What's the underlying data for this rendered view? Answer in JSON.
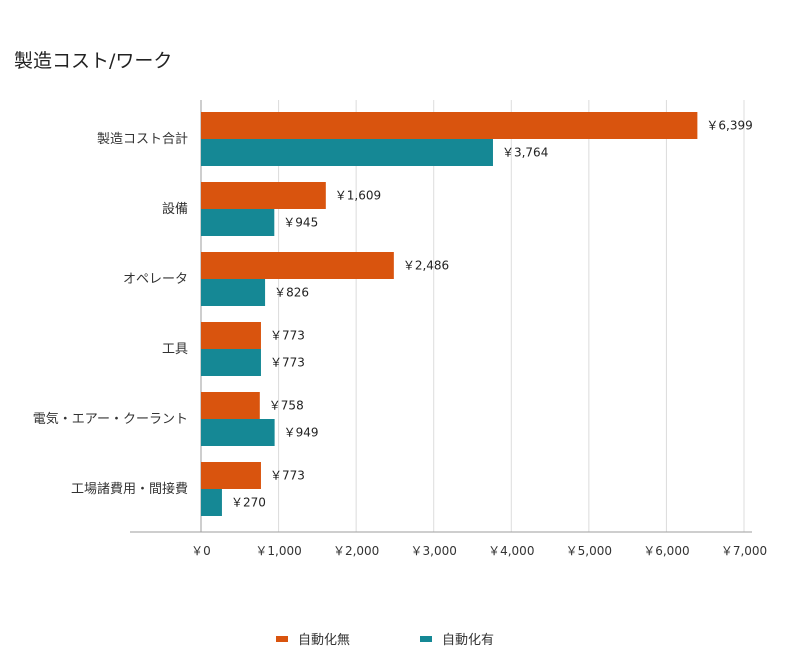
{
  "title": "製造コスト/ワーク",
  "colors": {
    "series1": "#d9540e",
    "series2": "#158895",
    "grid": "#dcdcdc",
    "axis": "#9e9e9e"
  },
  "chart_data": {
    "type": "bar",
    "orientation": "horizontal",
    "title": "製造コスト/ワーク",
    "categories": [
      "製造コスト合計",
      "設備",
      "オペレータ",
      "工具",
      "電気・エアー・クーラント",
      "工場諸費用・間接費"
    ],
    "series": [
      {
        "name": "自動化無",
        "values": [
          6399,
          1609,
          2486,
          773,
          758,
          773
        ],
        "labels": [
          "￥6,399",
          "￥1,609",
          "￥2,486",
          "￥773",
          "￥758",
          "￥773"
        ]
      },
      {
        "name": "自動化有",
        "values": [
          3764,
          945,
          826,
          773,
          949,
          270
        ],
        "labels": [
          "￥3,764",
          "￥945",
          "￥826",
          "￥773",
          "￥949",
          "￥270"
        ]
      }
    ],
    "xlim": [
      0,
      7000
    ],
    "xticks": [
      0,
      1000,
      2000,
      3000,
      4000,
      5000,
      6000,
      7000
    ],
    "xtick_labels": [
      "￥0",
      "￥1,000",
      "￥2,000",
      "￥3,000",
      "￥4,000",
      "￥5,000",
      "￥6,000",
      "￥7,000"
    ],
    "grid": true,
    "legend_position": "bottom"
  }
}
